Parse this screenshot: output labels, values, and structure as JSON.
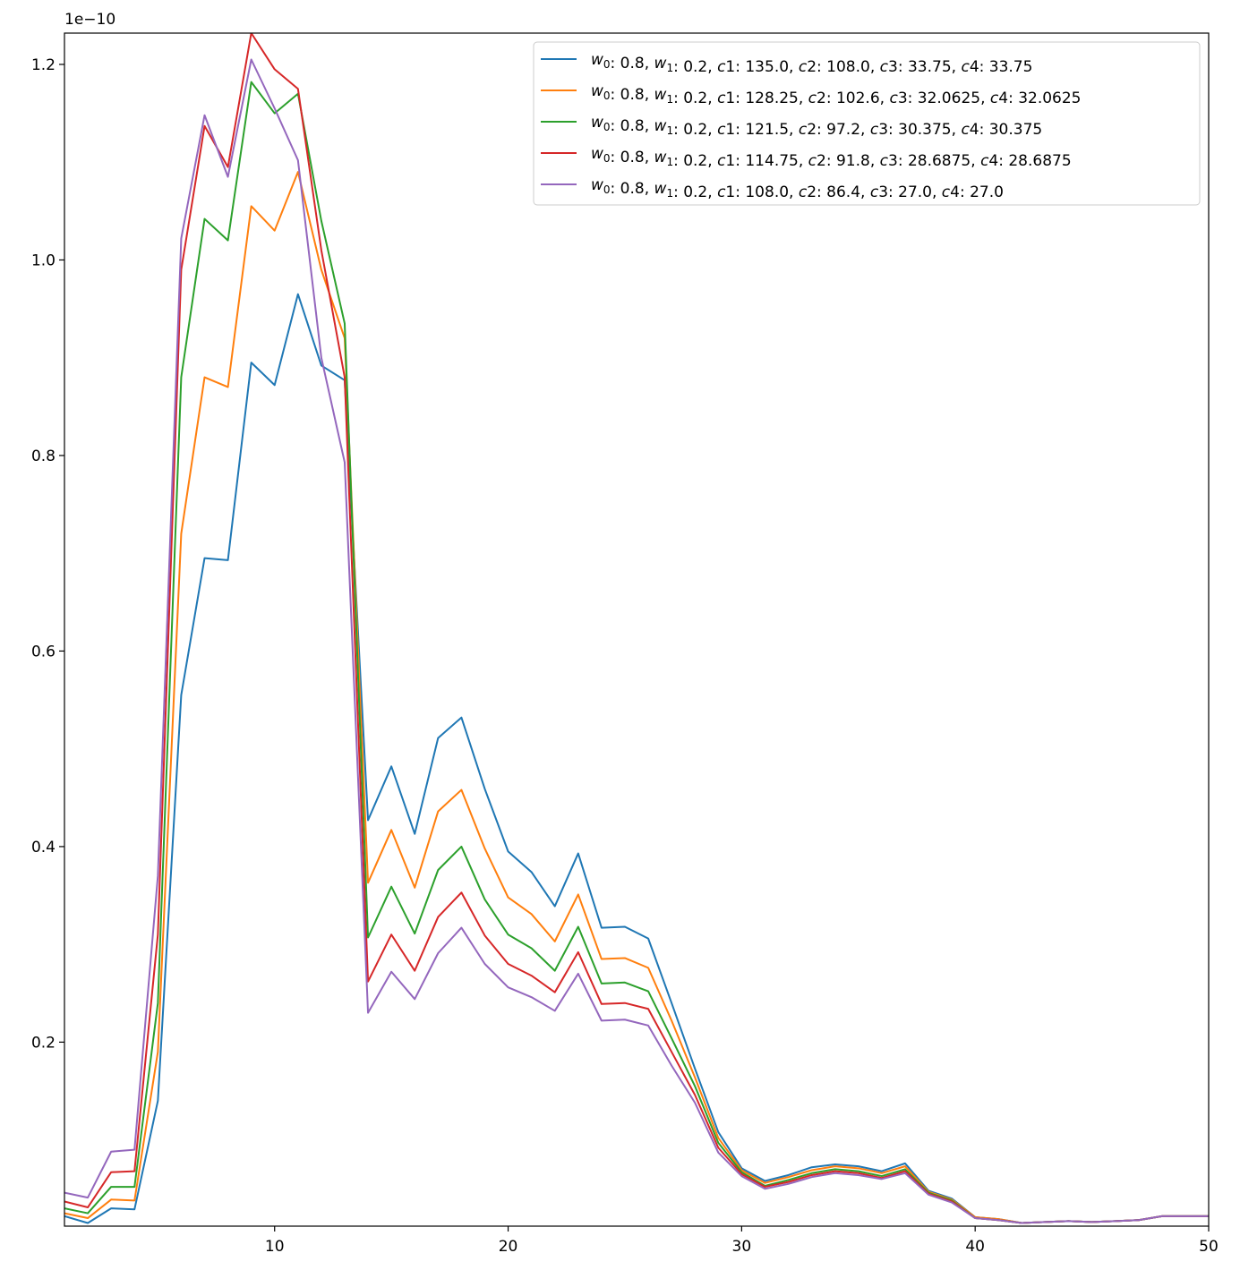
{
  "chart_data": {
    "type": "line",
    "title": "",
    "xlabel": "",
    "ylabel": "",
    "offset_label": "1e−10",
    "xlim": [
      1,
      50
    ],
    "ylim": [
      0.0118,
      1.232
    ],
    "x_ticks": [
      10,
      20,
      30,
      40,
      50
    ],
    "x_tick_labels": [
      "10",
      "20",
      "30",
      "40",
      "50"
    ],
    "y_ticks": [
      0.2,
      0.4,
      0.6,
      0.8,
      1.0,
      1.2
    ],
    "y_tick_labels": [
      "0.2",
      "0.4",
      "0.6",
      "0.8",
      "1.0",
      "1.2"
    ],
    "grid": false,
    "legend_position": "top-right",
    "x": [
      1,
      2,
      3,
      4,
      5,
      6,
      7,
      8,
      9,
      10,
      11,
      12,
      13,
      14,
      15,
      16,
      17,
      18,
      19,
      20,
      21,
      22,
      23,
      24,
      25,
      26,
      27,
      28,
      29,
      30,
      31,
      32,
      33,
      34,
      35,
      36,
      37,
      38,
      39,
      40,
      41,
      42,
      43,
      44,
      45,
      46,
      47,
      48,
      49,
      50
    ],
    "series": [
      {
        "name": "w_0: 0.8, w_1: 0.2, c1: 135.0, c2: 108.0, c3: 33.75, c4: 33.75",
        "color": "#1f77b4",
        "label_parts": {
          "w0": "0.8",
          "w1": "0.2",
          "c1": "135.0",
          "c2": "108.0",
          "c3": "33.75",
          "c4": "33.75"
        },
        "values": [
          0.022,
          0.015,
          0.03,
          0.029,
          0.14,
          0.555,
          0.695,
          0.693,
          0.895,
          0.872,
          0.965,
          0.892,
          0.877,
          0.427,
          0.482,
          0.413,
          0.511,
          0.532,
          0.459,
          0.395,
          0.374,
          0.339,
          0.393,
          0.317,
          0.318,
          0.306,
          0.24,
          0.173,
          0.108,
          0.071,
          0.058,
          0.064,
          0.072,
          0.075,
          0.073,
          0.068,
          0.076,
          0.048,
          0.04,
          0.021,
          0.019,
          0.015,
          0.016,
          0.017,
          0.016,
          0.017,
          0.018,
          0.022,
          0.022,
          0.022
        ]
      },
      {
        "name": "w_0: 0.8, w_1: 0.2, c1: 128.25, c2: 102.6, c3: 32.0625, c4: 32.0625",
        "color": "#ff7f0e",
        "label_parts": {
          "w0": "0.8",
          "w1": "0.2",
          "c1": "128.25",
          "c2": "102.6",
          "c3": "32.0625",
          "c4": "32.0625"
        },
        "values": [
          0.025,
          0.02,
          0.039,
          0.038,
          0.19,
          0.72,
          0.88,
          0.87,
          1.055,
          1.03,
          1.09,
          0.99,
          0.92,
          0.363,
          0.417,
          0.358,
          0.436,
          0.458,
          0.398,
          0.348,
          0.331,
          0.303,
          0.351,
          0.285,
          0.286,
          0.276,
          0.222,
          0.164,
          0.102,
          0.069,
          0.056,
          0.062,
          0.069,
          0.073,
          0.071,
          0.066,
          0.073,
          0.047,
          0.039,
          0.021,
          0.019,
          0.015,
          0.016,
          0.017,
          0.016,
          0.017,
          0.018,
          0.022,
          0.022,
          0.022
        ]
      },
      {
        "name": "w_0: 0.8, w_1: 0.2, c1: 121.5, c2: 97.2, c3: 30.375, c4: 30.375",
        "color": "#2ca02c",
        "label_parts": {
          "w0": "0.8",
          "w1": "0.2",
          "c1": "121.5",
          "c2": "97.2",
          "c3": "30.375",
          "c4": "30.375"
        },
        "values": [
          0.03,
          0.025,
          0.052,
          0.052,
          0.24,
          0.88,
          1.042,
          1.02,
          1.182,
          1.15,
          1.17,
          1.04,
          0.935,
          0.307,
          0.359,
          0.311,
          0.376,
          0.4,
          0.346,
          0.31,
          0.296,
          0.273,
          0.318,
          0.26,
          0.261,
          0.252,
          0.204,
          0.155,
          0.097,
          0.067,
          0.053,
          0.059,
          0.066,
          0.07,
          0.068,
          0.063,
          0.07,
          0.046,
          0.038,
          0.02,
          0.018,
          0.015,
          0.016,
          0.017,
          0.016,
          0.017,
          0.018,
          0.022,
          0.022,
          0.022
        ]
      },
      {
        "name": "w_0: 0.8, w_1: 0.2, c1: 114.75, c2: 91.8, c3: 28.6875, c4: 28.6875",
        "color": "#d62728",
        "label_parts": {
          "w0": "0.8",
          "w1": "0.2",
          "c1": "114.75",
          "c2": "91.8",
          "c3": "28.6875",
          "c4": "28.6875"
        },
        "values": [
          0.037,
          0.031,
          0.067,
          0.068,
          0.31,
          0.99,
          1.137,
          1.095,
          1.232,
          1.195,
          1.175,
          1.01,
          0.88,
          0.262,
          0.31,
          0.273,
          0.328,
          0.353,
          0.309,
          0.28,
          0.268,
          0.251,
          0.292,
          0.239,
          0.24,
          0.234,
          0.19,
          0.146,
          0.092,
          0.065,
          0.052,
          0.057,
          0.064,
          0.068,
          0.066,
          0.061,
          0.068,
          0.045,
          0.037,
          0.02,
          0.018,
          0.015,
          0.016,
          0.017,
          0.016,
          0.017,
          0.018,
          0.022,
          0.022,
          0.022
        ]
      },
      {
        "name": "w_0: 0.8, w_1: 0.2, c1: 108.0, c2: 86.4, c3: 27.0, c4: 27.0",
        "color": "#9467bd",
        "label_parts": {
          "w0": "0.8",
          "w1": "0.2",
          "c1": "108.0",
          "c2": "86.4",
          "c3": "27.0",
          "c4": "27.0"
        },
        "values": [
          0.046,
          0.041,
          0.088,
          0.09,
          0.37,
          1.022,
          1.148,
          1.085,
          1.205,
          1.155,
          1.102,
          0.9,
          0.793,
          0.23,
          0.272,
          0.244,
          0.291,
          0.317,
          0.28,
          0.256,
          0.246,
          0.232,
          0.27,
          0.222,
          0.223,
          0.217,
          0.176,
          0.138,
          0.087,
          0.063,
          0.05,
          0.055,
          0.062,
          0.066,
          0.064,
          0.06,
          0.066,
          0.044,
          0.036,
          0.02,
          0.018,
          0.015,
          0.016,
          0.017,
          0.016,
          0.017,
          0.018,
          0.022,
          0.022,
          0.022
        ]
      }
    ]
  }
}
